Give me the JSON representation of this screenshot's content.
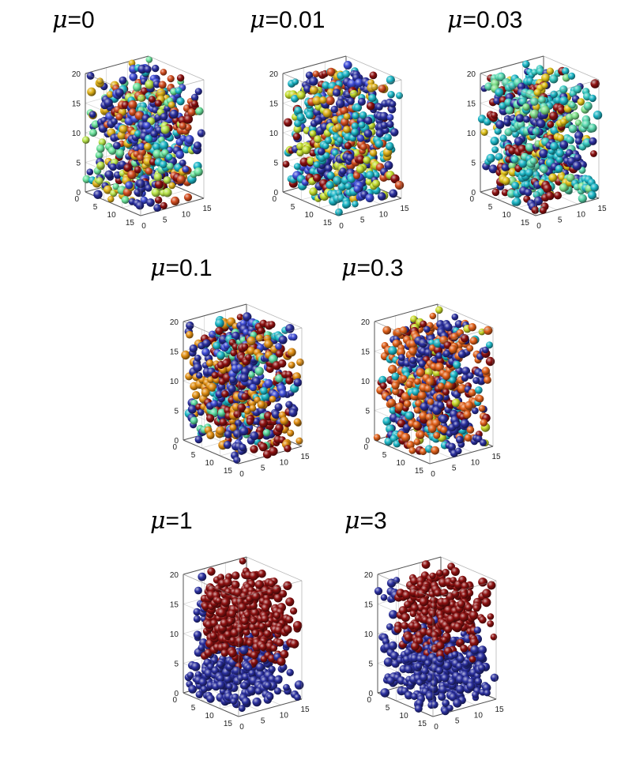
{
  "panels": [
    {
      "id": "mu0",
      "title_prefix": "μ",
      "title_value": "=0",
      "palette": [
        "#2a2f9e",
        "#2a2f9e",
        "#3d4bd6",
        "#1db7c7",
        "#6be39c",
        "#e0b21a",
        "#d04b1e",
        "#8c1010",
        "#b8e34a"
      ]
    },
    {
      "id": "mu001",
      "title_prefix": "μ",
      "title_value": "=0.01",
      "palette": [
        "#2a2f9e",
        "#2a2f9e",
        "#3d4bd6",
        "#1db7c7",
        "#1db7c7",
        "#e0b21a",
        "#d04b1e",
        "#8c1010",
        "#c2dc2e"
      ]
    },
    {
      "id": "mu003",
      "title_prefix": "μ",
      "title_value": "=0.03",
      "palette": [
        "#2a2f9e",
        "#1db7c7",
        "#1db7c7",
        "#5ad9b0",
        "#7fe08a",
        "#e0c21a",
        "#8c1010",
        "#2a2f9e",
        "#36c9c0"
      ]
    },
    {
      "id": "mu01",
      "title_prefix": "μ",
      "title_value": "=0.1",
      "palette": [
        "#2a2f9e",
        "#2a2f9e",
        "#3d4bd6",
        "#1db7c7",
        "#e08e12",
        "#e08e12",
        "#8c1010",
        "#8c1010",
        "#5ad9a0"
      ]
    },
    {
      "id": "mu03",
      "title_prefix": "μ",
      "title_value": "=0.3",
      "palette": [
        "#2a2f9e",
        "#2a2f9e",
        "#2a2f9e",
        "#1db7c7",
        "#e0601a",
        "#e0601a",
        "#c9d92a",
        "#8c1010",
        "#e0601a"
      ]
    },
    {
      "id": "mu1",
      "title_prefix": "μ",
      "title_value": "=1",
      "palette": [
        "#2a2f9e",
        "#2a2f9e",
        "#2a2f9e",
        "#8c1010"
      ]
    },
    {
      "id": "mu3",
      "title_prefix": "μ",
      "title_value": "=3",
      "palette": [
        "#2a2f9e",
        "#2a2f9e",
        "#2a2f9e",
        "#8c1010"
      ]
    }
  ],
  "axes": {
    "z_ticks": [
      "0",
      "5",
      "10",
      "15",
      "20"
    ],
    "y_ticks": [
      "0",
      "5",
      "10",
      "15"
    ],
    "x_ticks": [
      "0",
      "5",
      "10",
      "15"
    ]
  }
}
